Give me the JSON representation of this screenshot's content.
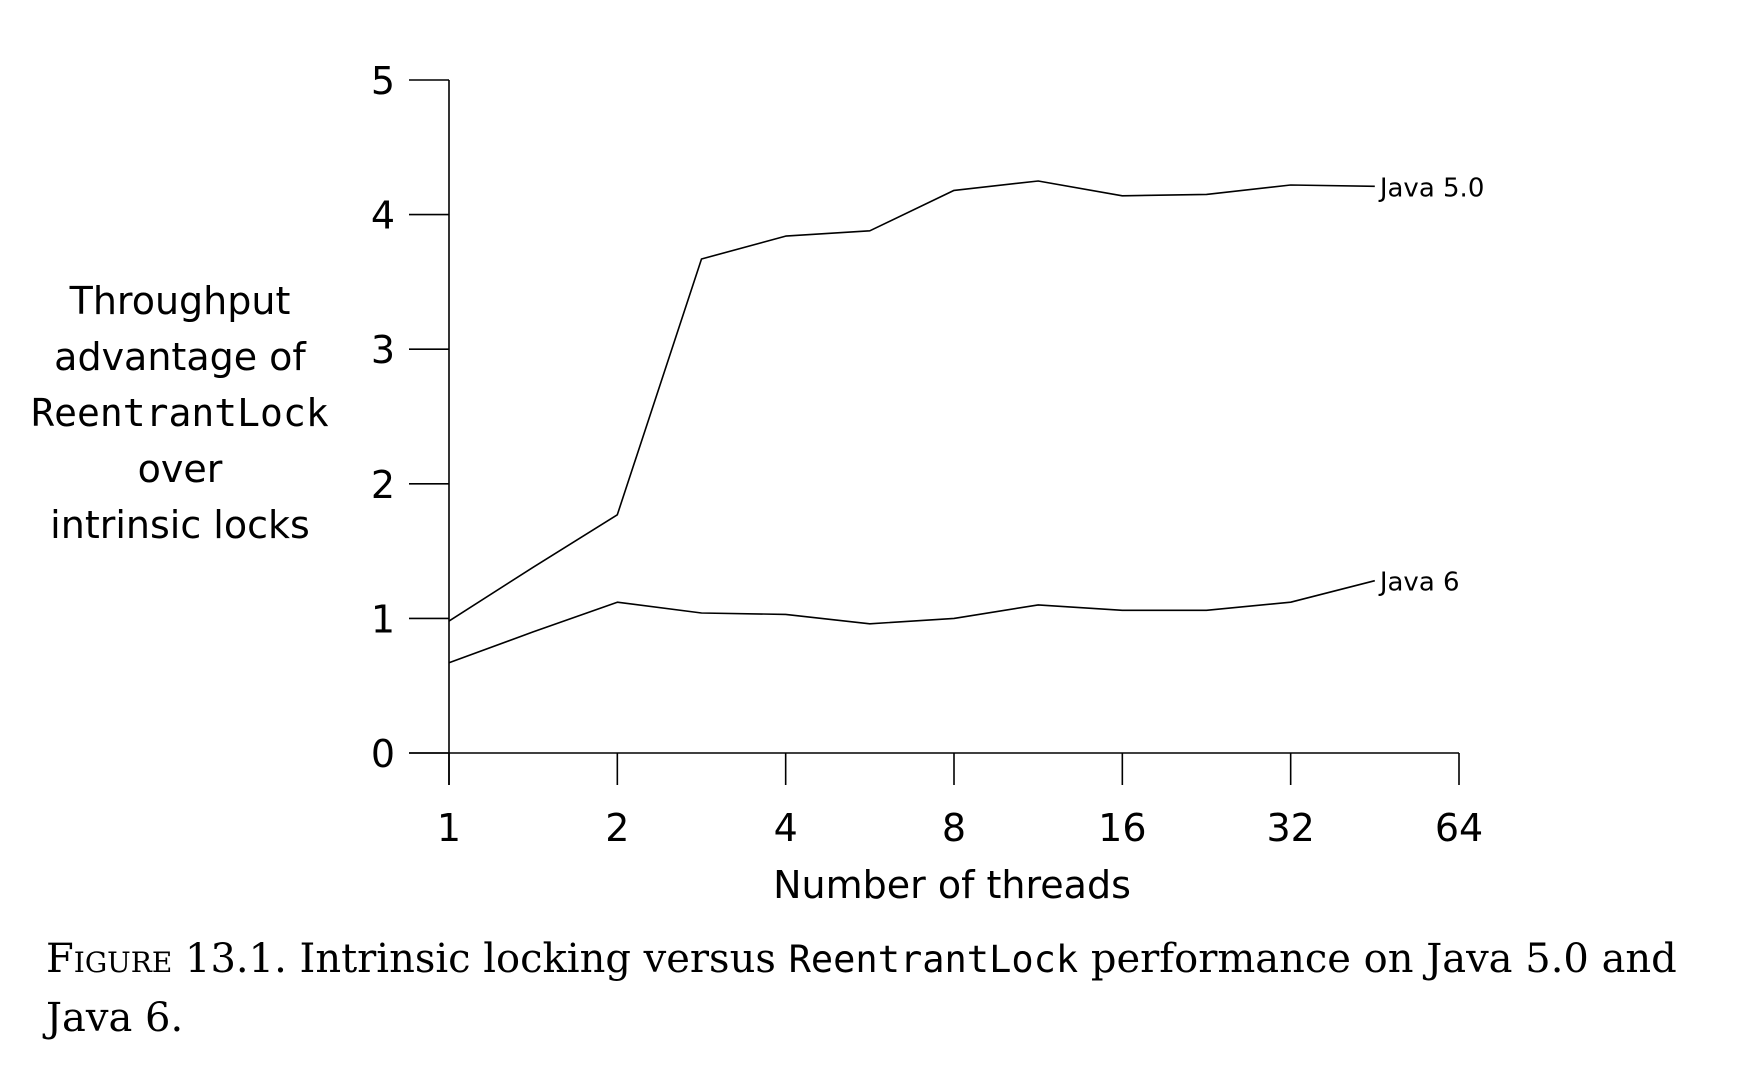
{
  "chart_data": {
    "type": "line",
    "x_scale": "log2",
    "x": [
      1,
      1.414,
      2,
      2.828,
      4,
      5.657,
      8,
      11.314,
      16,
      22.627,
      32,
      45.255
    ],
    "xticks": [
      "1",
      "2",
      "4",
      "8",
      "16",
      "32",
      "64"
    ],
    "xtick_values": [
      1,
      2,
      4,
      8,
      16,
      32,
      64
    ],
    "yticks": [
      "0",
      "1",
      "2",
      "3",
      "4",
      "5"
    ],
    "ylim": [
      0,
      5
    ],
    "xlabel": "Number of threads",
    "ylabel_lines": [
      "Throughput",
      "advantage of",
      "ReentrantLock",
      "over",
      "intrinsic locks"
    ],
    "grid": false,
    "series": [
      {
        "name": "Java 5.0",
        "values": [
          0.98,
          1.38,
          1.77,
          3.67,
          3.84,
          3.88,
          4.18,
          4.25,
          4.14,
          4.15,
          4.22,
          4.21
        ]
      },
      {
        "name": "Java 6",
        "values": [
          0.67,
          0.9,
          1.12,
          1.04,
          1.03,
          0.96,
          1.0,
          1.1,
          1.06,
          1.06,
          1.12,
          1.28
        ]
      }
    ]
  },
  "caption": {
    "label": "Figure 13.1.",
    "text_before": "Intrinsic locking versus",
    "code": "ReentrantLock",
    "text_after": "performance on Java 5.0 and Java 6."
  }
}
